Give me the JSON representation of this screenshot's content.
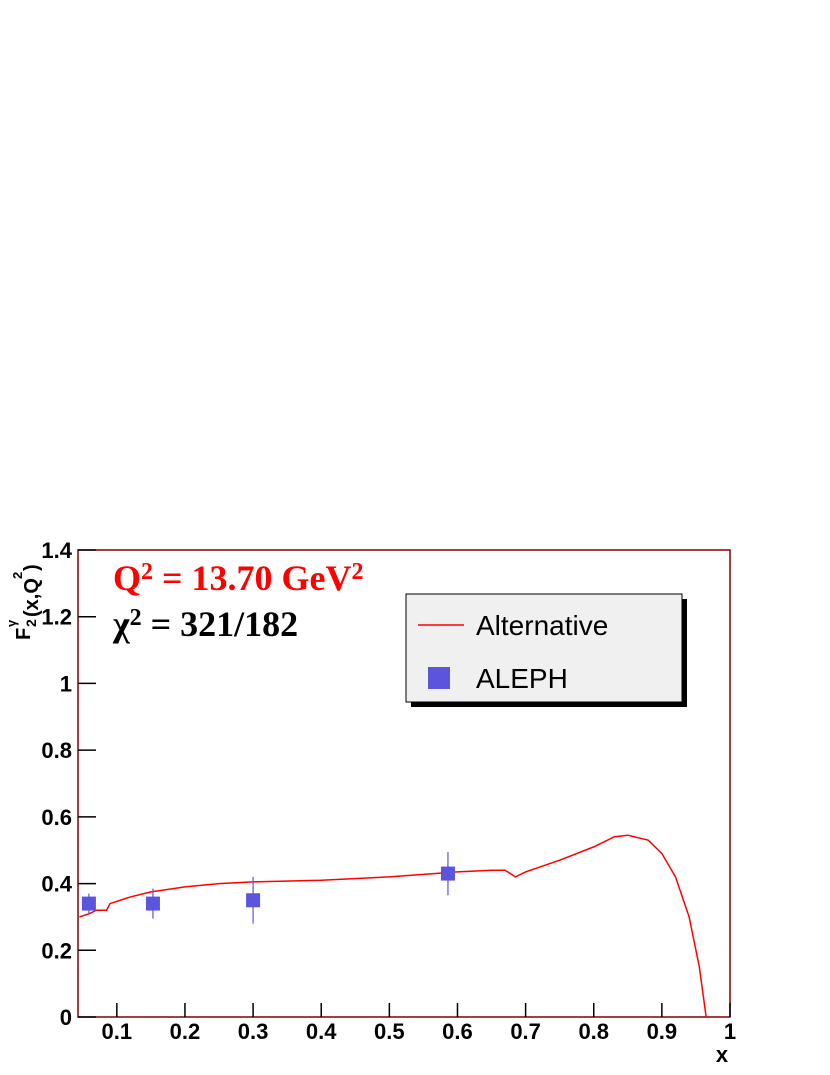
{
  "chart_data": {
    "type": "line",
    "annotations": [
      {
        "color": "#ff0000",
        "parts": [
          "Q",
          "2",
          " = 13.70 GeV",
          "2"
        ]
      },
      {
        "color": "#000000",
        "parts": [
          "χ",
          "2",
          " = 321/182"
        ]
      }
    ],
    "y_label": [
      "F",
      "2",
      "γ",
      "(x,Q",
      "2",
      ")"
    ],
    "x_label": "x",
    "xlim": [
      0.043,
      1
    ],
    "ylim": [
      0,
      1.4
    ],
    "xticks": [
      0.1,
      0.2,
      0.3,
      0.4,
      0.5,
      0.6,
      0.7,
      0.8,
      0.9,
      1
    ],
    "yticks": [
      0,
      0.2,
      0.4,
      0.6,
      0.8,
      1,
      1.2,
      1.4
    ],
    "legend": "upper right",
    "series": [
      {
        "name": "Alternative",
        "color": "#ff0000",
        "kind": "line",
        "x": [
          0.045,
          0.06,
          0.07,
          0.085,
          0.09,
          0.12,
          0.15,
          0.2,
          0.25,
          0.3,
          0.4,
          0.5,
          0.6,
          0.65,
          0.67,
          0.685,
          0.7,
          0.75,
          0.8,
          0.83,
          0.85,
          0.88,
          0.9,
          0.92,
          0.94,
          0.955,
          0.965
        ],
        "values": [
          0.3,
          0.31,
          0.32,
          0.32,
          0.34,
          0.36,
          0.375,
          0.39,
          0.4,
          0.405,
          0.41,
          0.42,
          0.435,
          0.44,
          0.44,
          0.42,
          0.435,
          0.47,
          0.51,
          0.54,
          0.545,
          0.53,
          0.49,
          0.42,
          0.3,
          0.15,
          0
        ]
      },
      {
        "name": "ALEPH",
        "color": "#5b55dd",
        "kind": "points",
        "x": [
          0.059,
          0.153,
          0.3,
          0.586
        ],
        "values": [
          0.34,
          0.34,
          0.35,
          0.43
        ],
        "errors": [
          0.03,
          0.045,
          0.07,
          0.065
        ]
      }
    ]
  }
}
